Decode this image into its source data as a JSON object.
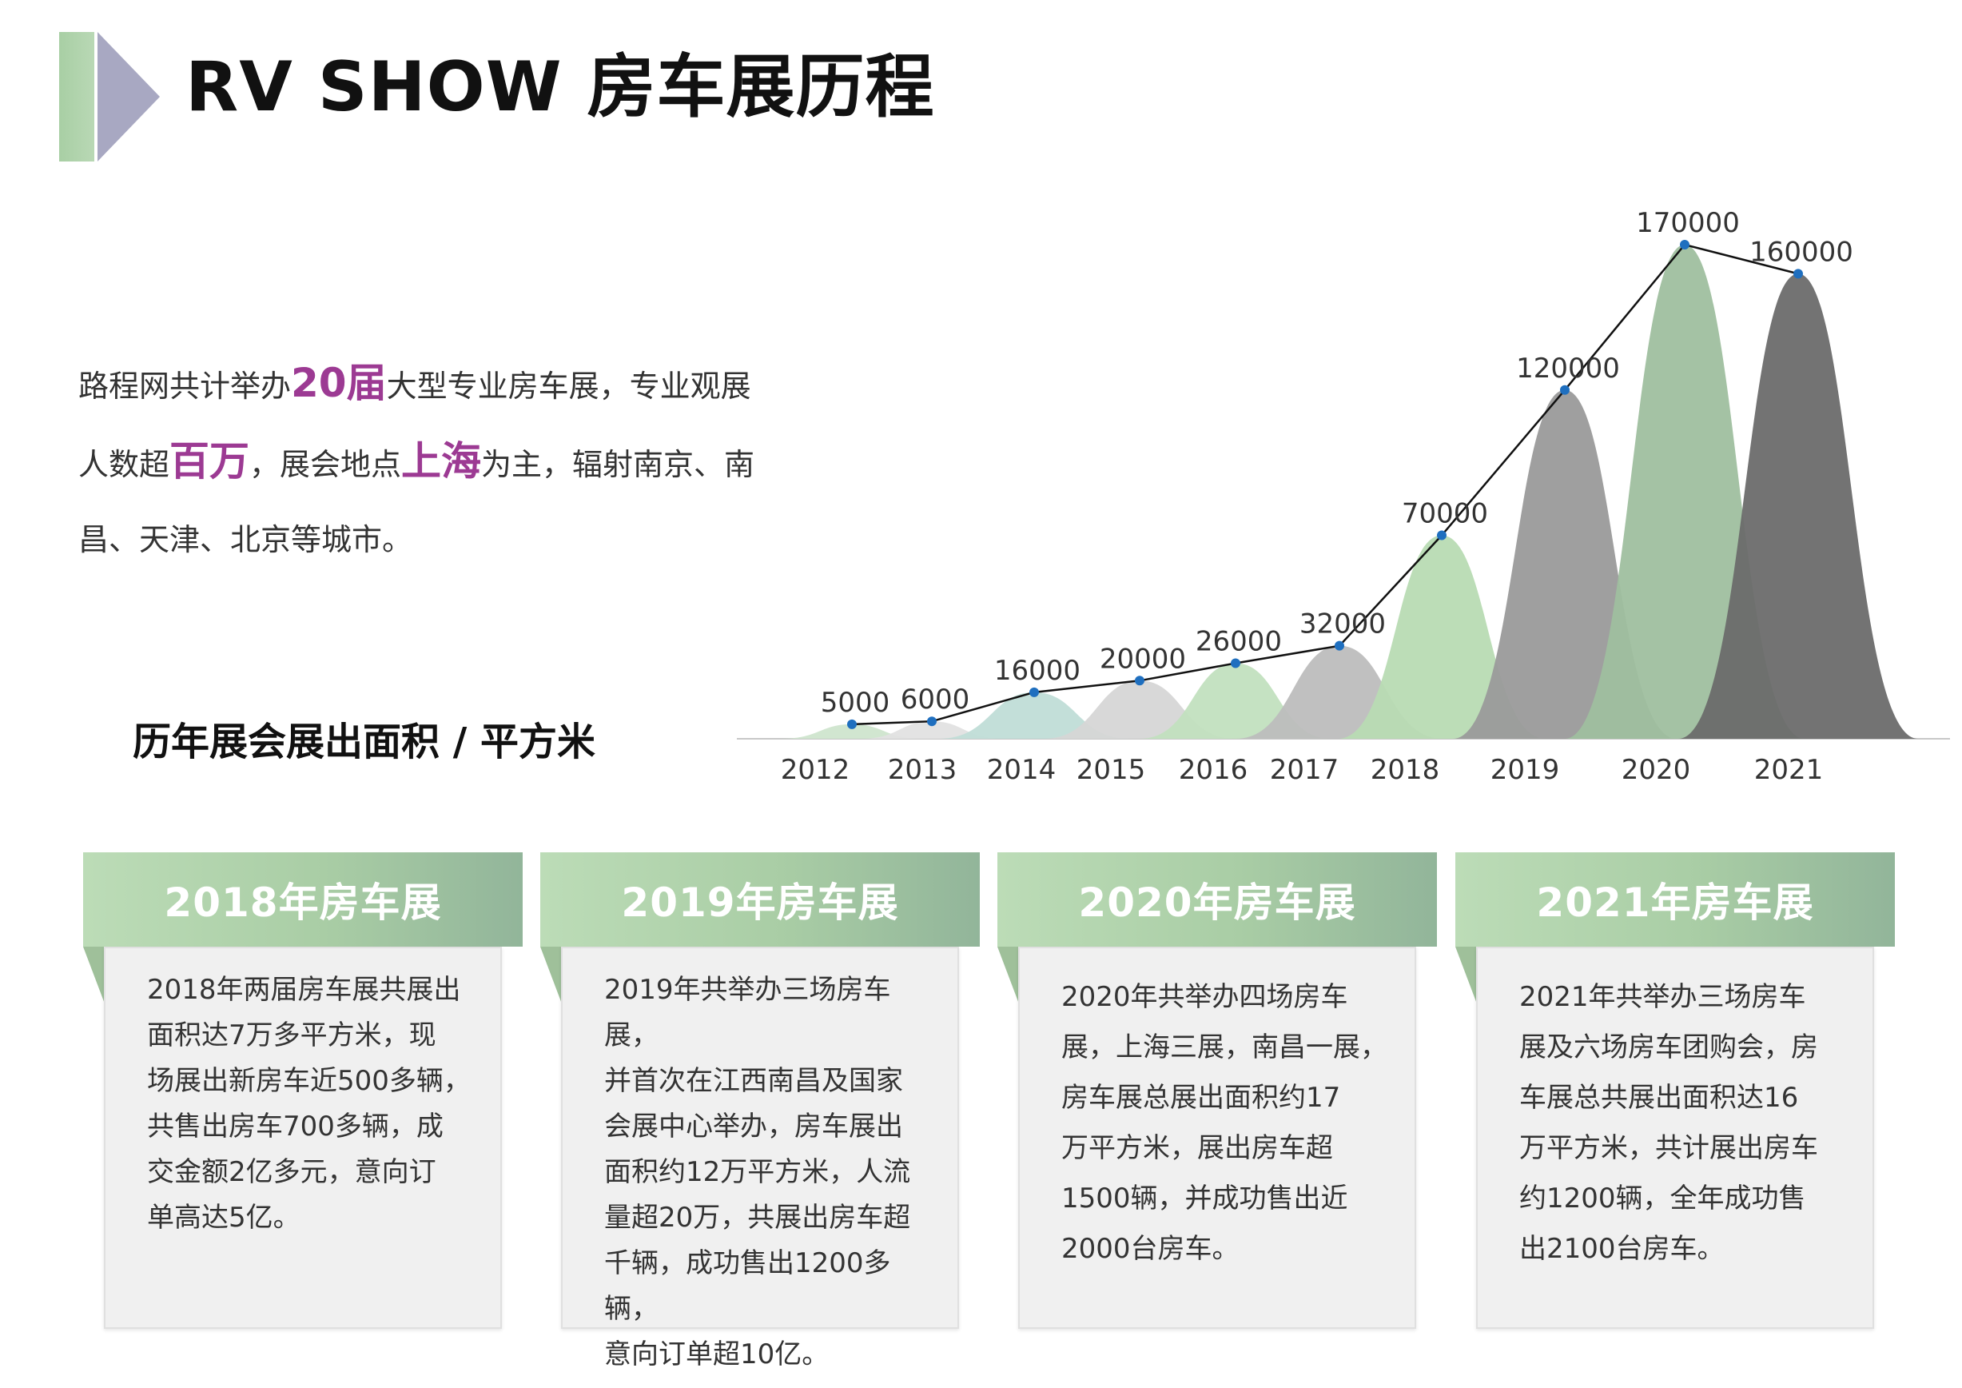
{
  "header": {
    "title": "RV SHOW 房车展历程"
  },
  "intro": {
    "part1": "路程网共计举办",
    "hl1": "20届",
    "part2": "大型专业房车展，专业观展人数超",
    "hl2": "百万",
    "part3": "，展会地点",
    "hl3": "上海",
    "part4": "为主，辐射南京、南昌、天津、北京等城市。"
  },
  "chart_caption": "历年展会展出面积 / 平方米",
  "chart_data": {
    "type": "area",
    "categories": [
      "2012",
      "2013",
      "2014",
      "2015",
      "2016",
      "2017",
      "2018",
      "2019",
      "2020",
      "2021"
    ],
    "series": [
      {
        "values": [
          5000,
          6000,
          16000,
          20000,
          26000,
          32000,
          70000,
          120000,
          170000,
          160000
        ]
      }
    ],
    "data_labels": [
      "5000",
      "6000",
      "16000",
      "20000",
      "26000",
      "32000",
      "70000",
      "120000",
      "170000",
      "160000"
    ],
    "ylim": [
      0,
      170000
    ],
    "grid": false,
    "legend": "none",
    "colors": [
      "#cfe5ce",
      "#e1e1e1",
      "#c0ddd7",
      "#d6d6d6",
      "#c2e0bf",
      "#bdbdbd",
      "#b8dbb3",
      "#9a9a9a",
      "#9fbf9f",
      "#6b6b6b"
    ],
    "line_color": "#111111",
    "marker_color": "#1f6fbf"
  },
  "cards": [
    {
      "title": "2018年房车展",
      "lines": [
        "2018年两届房车展共展出",
        "面积达7万多平方米，现",
        "场展出新房车近500多辆，",
        "共售出房车700多辆，成",
        "交金额2亿多元，意向订",
        "单高达5亿。"
      ]
    },
    {
      "title": "2019年房车展",
      "lines": [
        "2019年共举办三场房车展，",
        "并首次在江西南昌及国家",
        "会展中心举办，房车展出",
        "面积约12万平方米，人流",
        "量超20万，共展出房车超",
        "千辆，成功售出1200多辆，",
        "意向订单超10亿。"
      ]
    },
    {
      "title": "2020年房车展",
      "lines": [
        "2020年共举办四场房车",
        "展，上海三展，南昌一展，",
        "房车展总展出面积约17",
        "万平方米，展出房车超",
        "1500辆，并成功售出近",
        "2000台房车。"
      ]
    },
    {
      "title": "2021年房车展",
      "lines": [
        "2021年共举办三场房车",
        "展及六场房车团购会，房",
        "车展总共展出面积达16",
        "万平方米，共计展出房车",
        "约1200辆，全年成功售",
        "出2100台房车。"
      ]
    }
  ]
}
